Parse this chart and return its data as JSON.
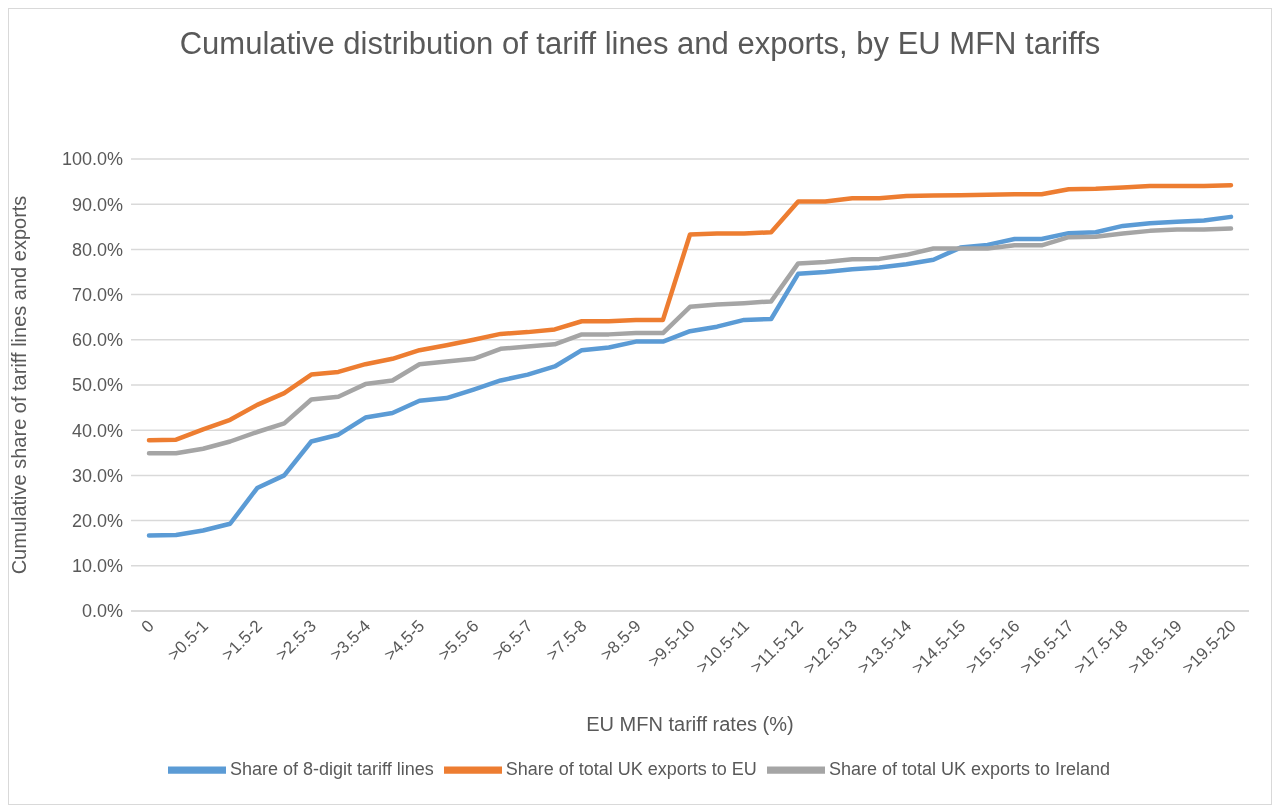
{
  "chart_data": {
    "type": "line",
    "title": "Cumulative distribution of tariff lines and exports, by EU MFN tariffs",
    "xlabel": "EU MFN tariff rates (%)",
    "ylabel": "Cumulative share of tariff lines and exports",
    "categories": [
      "0",
      null,
      ">0.5-1",
      null,
      ">1.5-2",
      null,
      ">2.5-3",
      null,
      ">3.5-4",
      null,
      ">4.5-5",
      null,
      ">5.5-6",
      null,
      ">6.5-7",
      null,
      ">7.5-8",
      null,
      ">8.5-9",
      null,
      ">9.5-10",
      null,
      ">10.5-11",
      null,
      ">11.5-12",
      null,
      ">12.5-13",
      null,
      ">13.5-14",
      null,
      ">14.5-15",
      null,
      ">15.5-16",
      null,
      ">16.5-17",
      null,
      ">17.5-18",
      null,
      ">18.5-19",
      null,
      ">19.5-20"
    ],
    "series": [
      {
        "name": "Share of 8-digit tariff lines",
        "color": "#5b9bd5",
        "values": [
          16.7,
          16.8,
          17.8,
          19.3,
          27.2,
          30.0,
          37.5,
          39.0,
          42.8,
          43.8,
          46.5,
          47.1,
          49.0,
          51.0,
          52.3,
          54.1,
          57.7,
          58.3,
          59.6,
          59.6,
          61.9,
          62.9,
          64.4,
          64.6,
          74.6,
          75.0,
          75.6,
          76.0,
          76.7,
          77.7,
          80.4,
          81.0,
          82.3,
          82.3,
          83.6,
          83.8,
          85.2,
          85.8,
          86.1,
          86.4,
          87.2
        ]
      },
      {
        "name": "Share of total UK exports to EU",
        "color": "#ed7d31",
        "values": [
          37.8,
          37.9,
          40.2,
          42.3,
          45.6,
          48.2,
          52.3,
          52.9,
          54.6,
          55.8,
          57.7,
          58.8,
          60.0,
          61.3,
          61.7,
          62.3,
          64.1,
          64.1,
          64.4,
          64.4,
          83.3,
          83.5,
          83.5,
          83.8,
          90.6,
          90.6,
          91.3,
          91.3,
          91.8,
          91.9,
          92.0,
          92.1,
          92.2,
          92.2,
          93.3,
          93.4,
          93.7,
          94.0,
          94.0,
          94.0,
          94.2
        ]
      },
      {
        "name": "Share of total UK exports to Ireland",
        "color": "#a5a5a5",
        "values": [
          34.9,
          34.9,
          35.9,
          37.5,
          39.6,
          41.5,
          46.8,
          47.4,
          50.2,
          51.0,
          54.6,
          55.2,
          55.8,
          58.0,
          58.5,
          59.0,
          61.2,
          61.2,
          61.5,
          61.5,
          67.3,
          67.8,
          68.1,
          68.5,
          76.9,
          77.2,
          77.8,
          77.9,
          78.8,
          80.2,
          80.2,
          80.2,
          80.9,
          80.9,
          82.7,
          82.8,
          83.5,
          84.1,
          84.4,
          84.4,
          84.6
        ]
      }
    ],
    "ylim": [
      0,
      100
    ],
    "yticks": [
      {
        "value": 0,
        "label": "0.0%"
      },
      {
        "value": 10,
        "label": "10.0%"
      },
      {
        "value": 20,
        "label": "20.0%"
      },
      {
        "value": 30,
        "label": "30.0%"
      },
      {
        "value": 40,
        "label": "40.0%"
      },
      {
        "value": 50,
        "label": "50.0%"
      },
      {
        "value": 60,
        "label": "60.0%"
      },
      {
        "value": 70,
        "label": "70.0%"
      },
      {
        "value": 80,
        "label": "80.0%"
      },
      {
        "value": 90,
        "label": "90.0%"
      },
      {
        "value": 100,
        "label": "100.0%"
      }
    ],
    "grid": "y",
    "legend": "bottom",
    "marker": "none",
    "line_style": "solid"
  }
}
